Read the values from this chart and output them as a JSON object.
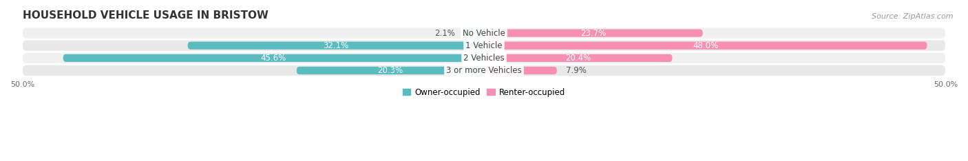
{
  "title": "HOUSEHOLD VEHICLE USAGE IN BRISTOW",
  "source": "Source: ZipAtlas.com",
  "categories": [
    "No Vehicle",
    "1 Vehicle",
    "2 Vehicles",
    "3 or more Vehicles"
  ],
  "owner_values": [
    2.1,
    32.1,
    45.6,
    20.3
  ],
  "renter_values": [
    23.7,
    48.0,
    20.4,
    7.9
  ],
  "owner_color": "#5bbcbf",
  "renter_color": "#f78fb3",
  "row_bg_colors": [
    "#f0f0f0",
    "#e8e8e8",
    "#f0f0f0",
    "#e8e8e8"
  ],
  "axis_min": -50.0,
  "axis_max": 50.0,
  "legend_owner": "Owner-occupied",
  "legend_renter": "Renter-occupied",
  "title_fontsize": 11,
  "source_fontsize": 8,
  "label_fontsize": 8.5,
  "category_fontsize": 8.5
}
